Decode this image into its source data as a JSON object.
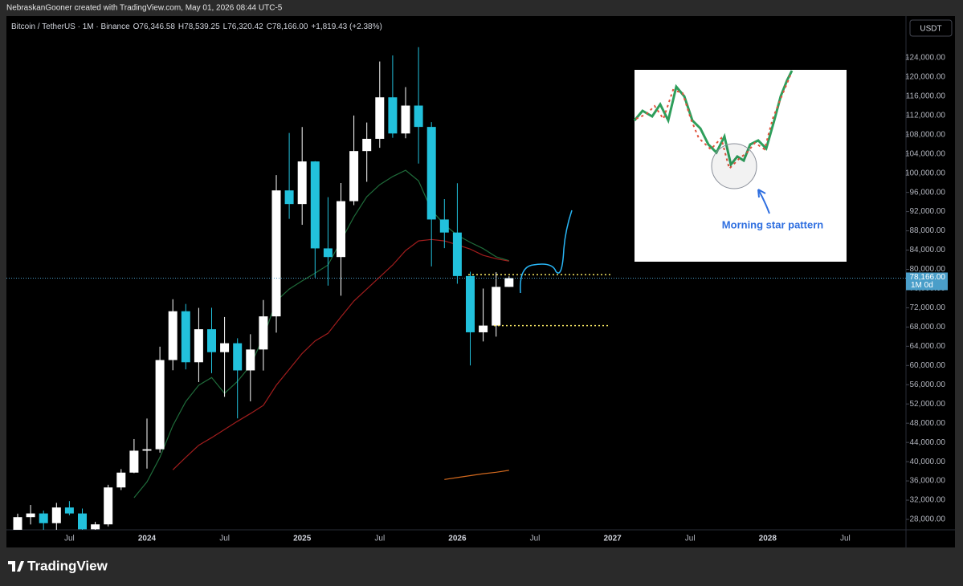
{
  "header": {
    "credit": "NebraskanGooner created with TradingView.com, May 01, 2026 08:44 UTC-5"
  },
  "chart_data": {
    "type": "candlestick",
    "symbol": "Bitcoin / TetherUS · 1M · Binance",
    "ohlc_labels": [
      "O76,346.58",
      "H78,539.25",
      "L76,320.42",
      "C78,166.00",
      "+1,819.43 (+2.38%)"
    ],
    "currency": "USDT",
    "last_price_label": "78,166.00",
    "interval_label": "1M 0d",
    "categories": [
      null,
      null,
      null,
      null,
      "Jul",
      null,
      null,
      null,
      null,
      null,
      "2024",
      null,
      null,
      null,
      null,
      null,
      "Jul",
      null,
      null,
      null,
      null,
      null,
      "2025",
      null,
      null,
      null,
      null,
      null,
      "Jul",
      null,
      null,
      null,
      null,
      null,
      "2026",
      null,
      null,
      null,
      null,
      null,
      "Jul",
      null,
      null,
      null,
      null,
      null,
      "2027",
      null,
      null,
      null,
      null,
      null,
      "Jul",
      null,
      null,
      null,
      null,
      null,
      "2028",
      null,
      null,
      null,
      null,
      null,
      "Jul",
      null,
      null,
      null,
      null
    ],
    "open": [
      23141,
      28465,
      29233,
      27210,
      30472,
      29232,
      25940,
      26962,
      34639,
      37723,
      42284,
      42580,
      61131,
      71280,
      60672,
      67540,
      62772,
      64628,
      58974,
      63327,
      70215,
      96408,
      93576,
      102429,
      84350,
      82550,
      94172,
      104591,
      107135,
      115764,
      108246,
      114049,
      109608,
      90360,
      87648,
      78600,
      66900,
      68300,
      76346.58,
      null,
      null,
      null,
      null,
      null,
      null,
      null,
      null,
      null,
      null,
      null,
      null,
      null,
      null,
      null,
      null,
      null,
      null,
      null,
      null,
      null,
      null,
      null,
      null,
      null,
      null,
      null,
      null,
      null,
      null
    ],
    "high": [
      29184,
      31000,
      29820,
      31431,
      31804,
      30244,
      27483,
      35198,
      38450,
      44700,
      48969,
      63913,
      73777,
      72797,
      71979,
      72000,
      70080,
      65660,
      66500,
      73620,
      99588,
      108353,
      109588,
      102500,
      95000,
      97938,
      111980,
      110530,
      123218,
      124474,
      117900,
      126200,
      110600,
      94600,
      97900,
      79500,
      76000,
      79400,
      78539.25,
      null,
      null,
      null,
      null,
      null,
      null,
      null,
      null,
      null,
      null,
      null,
      null,
      null,
      null,
      null,
      null,
      null,
      null,
      null,
      null,
      null,
      null,
      null,
      null,
      null,
      null,
      null,
      null,
      null,
      null
    ],
    "low": [
      19549,
      26942,
      25811,
      24800,
      28861,
      25166,
      24901,
      26538,
      34097,
      37615,
      38555,
      41884,
      59005,
      59191,
      56552,
      58402,
      53485,
      49000,
      52550,
      58946,
      66835,
      90500,
      89256,
      78258,
      76606,
      74508,
      93347,
      98200,
      105271,
      107350,
      107255,
      102000,
      80600,
      84400,
      77000,
      60000,
      65000,
      66000,
      76320.42,
      null,
      null,
      null,
      null,
      null,
      null,
      null,
      null,
      null,
      null,
      null,
      null,
      null,
      null,
      null,
      null,
      null,
      null,
      null,
      null,
      null,
      null,
      null,
      null,
      null,
      null,
      null,
      null,
      null,
      null
    ],
    "close": [
      28465,
      29233,
      27210,
      30472,
      29232,
      25940,
      26962,
      34639,
      37723,
      42284,
      42580,
      61131,
      71280,
      60672,
      67540,
      62772,
      64628,
      58974,
      63327,
      70215,
      96408,
      93576,
      102429,
      84350,
      82550,
      94172,
      104591,
      107135,
      115764,
      108246,
      114049,
      109608,
      90360,
      87648,
      78600,
      66900,
      68300,
      76346.58,
      78166,
      null,
      null,
      null,
      null,
      null,
      null,
      null,
      null,
      null,
      null,
      null,
      null,
      null,
      null,
      null,
      null,
      null,
      null,
      null,
      null,
      null,
      null,
      null,
      null,
      null,
      null,
      null,
      null,
      null,
      null
    ],
    "up_color": "#ffffff",
    "down_color": "#22c1dc",
    "lines": [
      {
        "color": "#1f6b3a",
        "values": [
          null,
          null,
          null,
          null,
          null,
          null,
          null,
          null,
          null,
          32500,
          35800,
          40900,
          47500,
          52500,
          55900,
          57500,
          54200,
          56700,
          60000,
          65900,
          73400,
          75900,
          77600,
          79200,
          80900,
          85900,
          90900,
          95100,
          97600,
          99300,
          100600,
          98400,
          92300,
          89300,
          87100,
          85600,
          84300,
          82600,
          81800,
          null,
          null,
          null,
          null,
          null,
          null,
          null,
          null,
          null,
          null,
          null,
          null,
          null,
          null,
          null,
          null,
          null,
          null,
          null,
          null,
          null,
          null,
          null,
          null,
          null,
          null,
          null,
          null,
          null,
          null
        ]
      },
      {
        "color": "#a11d1d",
        "values": [
          null,
          null,
          null,
          null,
          null,
          null,
          null,
          null,
          null,
          null,
          null,
          null,
          38300,
          40900,
          43400,
          45000,
          46700,
          48400,
          50000,
          51700,
          55900,
          59200,
          62500,
          65100,
          66700,
          70100,
          73400,
          75900,
          78400,
          80900,
          83900,
          85900,
          86200,
          85900,
          85100,
          84200,
          82900,
          82200,
          81700,
          null,
          null,
          null,
          null,
          null,
          null,
          null,
          null,
          null,
          null,
          null,
          null,
          null,
          null,
          null,
          null,
          null,
          null,
          null,
          null,
          null,
          null,
          null,
          null,
          null,
          null,
          null,
          null,
          null,
          null
        ]
      },
      {
        "color": "#d2691e",
        "values": [
          null,
          null,
          null,
          null,
          null,
          null,
          null,
          null,
          null,
          null,
          null,
          null,
          null,
          null,
          null,
          null,
          null,
          null,
          null,
          null,
          null,
          null,
          null,
          null,
          null,
          null,
          null,
          null,
          null,
          null,
          null,
          null,
          null,
          36300,
          36700,
          37100,
          37500,
          37800,
          38200,
          null,
          null,
          null,
          null,
          null,
          null,
          null,
          null,
          null,
          null,
          null,
          null,
          null,
          null,
          null,
          null,
          null,
          null,
          null,
          null,
          null,
          null,
          null,
          null,
          null,
          null,
          null,
          null
        ]
      }
    ],
    "levels": [
      78900,
      68300
    ],
    "ylim": [
      25830,
      132330
    ],
    "yticks": [
      {
        "value": 28000,
        "label": "28,000.00"
      },
      {
        "value": 32000,
        "label": "32,000.00"
      },
      {
        "value": 36000,
        "label": "36,000.00"
      },
      {
        "value": 40000,
        "label": "40,000.00"
      },
      {
        "value": 44000,
        "label": "44,000.00"
      },
      {
        "value": 48000,
        "label": "48,000.00"
      },
      {
        "value": 52000,
        "label": "52,000.00"
      },
      {
        "value": 56000,
        "label": "56,000.00"
      },
      {
        "value": 60000,
        "label": "60,000.00"
      },
      {
        "value": 64000,
        "label": "64,000.00"
      },
      {
        "value": 68000,
        "label": "68,000.00"
      },
      {
        "value": 72000,
        "label": "72,000.00"
      },
      {
        "value": 76000,
        "label": "76,000.00"
      },
      {
        "value": 80000,
        "label": "80,000.00"
      },
      {
        "value": 84000,
        "label": "84,000.00"
      },
      {
        "value": 88000,
        "label": "88,000.00"
      },
      {
        "value": 92000,
        "label": "92,000.00"
      },
      {
        "value": 96000,
        "label": "96,000.00"
      },
      {
        "value": 100000,
        "label": "100,000.00"
      },
      {
        "value": 104000,
        "label": "104,000.00"
      },
      {
        "value": 108000,
        "label": "108,000.00"
      },
      {
        "value": 112000,
        "label": "112,000.00"
      },
      {
        "value": 116000,
        "label": "116,000.00"
      },
      {
        "value": 120000,
        "label": "120,000.00"
      },
      {
        "value": 124000,
        "label": "124,000.00"
      }
    ],
    "inset_caption": "Morning star pattern",
    "brand": "TradingView"
  }
}
